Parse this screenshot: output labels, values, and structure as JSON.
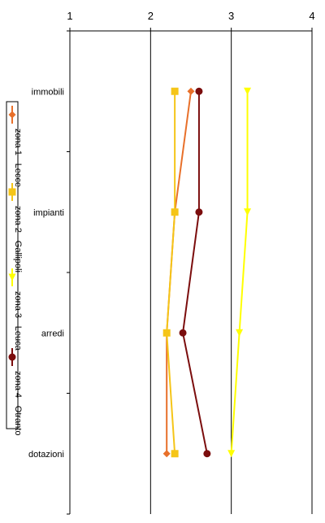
{
  "chart_data": {
    "type": "line",
    "orientation": "vertical-categories",
    "title": "",
    "xlabel": "",
    "ylabel": "",
    "xlim": [
      1,
      4
    ],
    "x_ticks": [
      "1",
      "2",
      "3",
      "4"
    ],
    "categories": [
      "immobili",
      "impianti",
      "arredi",
      "dotazioni"
    ],
    "grid": true,
    "legend_placement": "left",
    "series": [
      {
        "name": "zona 1 - Lecce",
        "color": "#e8702a",
        "marker": "diamond",
        "values": [
          2.5,
          2.3,
          2.2,
          2.2
        ]
      },
      {
        "name": "zona 2 - Gallipoli",
        "color": "#f5c518",
        "marker": "square",
        "values": [
          2.3,
          2.3,
          2.2,
          2.3
        ]
      },
      {
        "name": "zona 3 - Leuca",
        "color": "#ffff00",
        "marker": "triangle",
        "values": [
          3.2,
          3.2,
          3.1,
          3.0
        ]
      },
      {
        "name": "zona 4 - Otranto",
        "color": "#7b0d0d",
        "marker": "circle",
        "values": [
          2.6,
          2.6,
          2.4,
          2.7
        ]
      }
    ]
  }
}
